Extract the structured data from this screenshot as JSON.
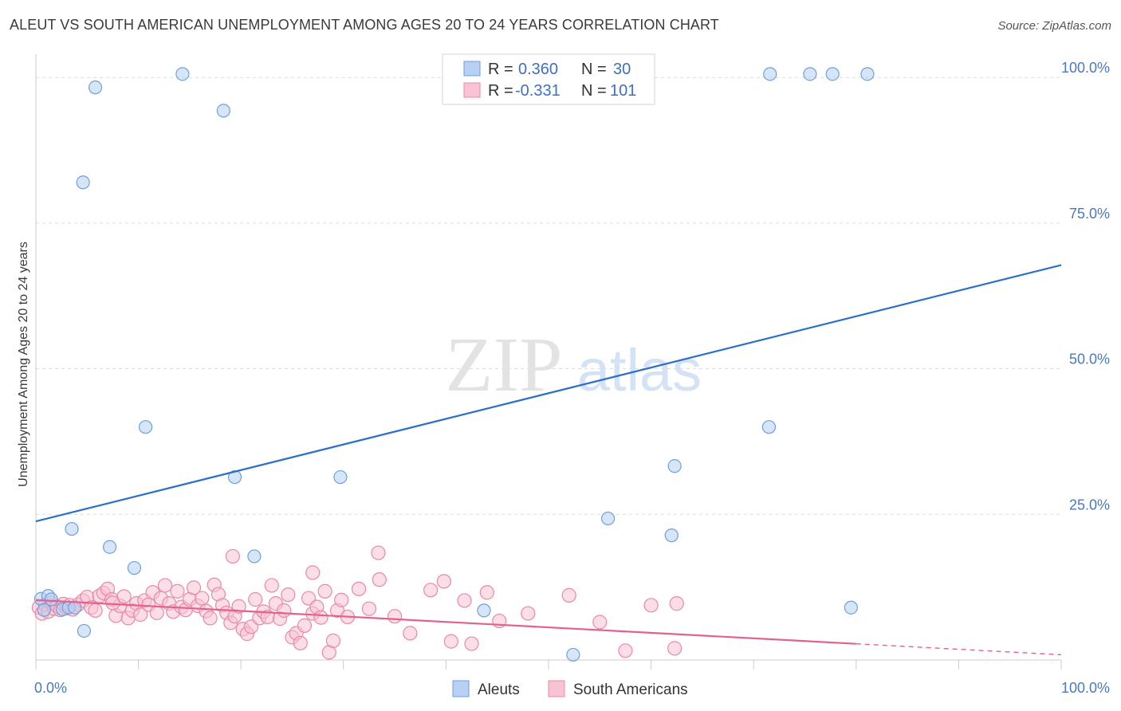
{
  "header": {
    "title": "ALEUT VS SOUTH AMERICAN UNEMPLOYMENT AMONG AGES 20 TO 24 YEARS CORRELATION CHART",
    "source": "Source: ZipAtlas.com"
  },
  "watermark": {
    "zip": "ZIP",
    "atlas": "atlas"
  },
  "legend_top": {
    "rows": [
      {
        "r_label": "R =",
        "r_value": "0.360",
        "n_label": "N =",
        "n_value": "30"
      },
      {
        "r_label": "R =",
        "r_value": "-0.331",
        "n_label": "N =",
        "n_value": "101"
      }
    ]
  },
  "legend_bottom": [
    "Aleuts",
    "South Americans"
  ],
  "colors": {
    "aleut_fill": "#b7d0f4",
    "aleut_stroke": "#6f9fdc",
    "aleut_line": "#2e6fcc",
    "sa_fill": "#f8c3d2",
    "sa_stroke": "#e889a6",
    "sa_line": "#e2628c",
    "grid": "#d9d9d9",
    "tick_text": "#4a78c2"
  },
  "chart_data": {
    "type": "scatter",
    "title": "ALEUT VS SOUTH AMERICAN UNEMPLOYMENT AMONG AGES 20 TO 24 YEARS CORRELATION CHART",
    "xlabel": "",
    "ylabel": "Unemployment Among Ages 20 to 24 years",
    "xlim": [
      0,
      100
    ],
    "ylim": [
      0,
      104
    ],
    "x_tick_labels": [
      "0.0%",
      "100.0%"
    ],
    "y_ticks": [
      25,
      50,
      75,
      100
    ],
    "y_tick_labels": [
      "25.0%",
      "50.0%",
      "75.0%",
      "100.0%"
    ],
    "grid": true,
    "series": [
      {
        "name": "Aleuts",
        "r": 0.36,
        "n": 30,
        "trend": {
          "x": [
            0,
            100
          ],
          "y": [
            23.8,
            67.8
          ],
          "dashed_from": null
        },
        "points": [
          [
            0.5,
            10.5
          ],
          [
            0.8,
            8.6
          ],
          [
            1.2,
            11.0
          ],
          [
            1.5,
            10.4
          ],
          [
            2.6,
            8.7
          ],
          [
            3.2,
            9.0
          ],
          [
            3.5,
            22.5
          ],
          [
            3.8,
            9.0
          ],
          [
            4.7,
            5.0
          ],
          [
            5.8,
            98.3
          ],
          [
            4.6,
            82.0
          ],
          [
            7.2,
            19.4
          ],
          [
            9.6,
            15.8
          ],
          [
            10.7,
            40.0
          ],
          [
            14.3,
            100.6
          ],
          [
            18.3,
            94.3
          ],
          [
            19.4,
            31.4
          ],
          [
            21.3,
            17.8
          ],
          [
            29.7,
            31.4
          ],
          [
            43.7,
            8.5
          ],
          [
            52.4,
            0.9
          ],
          [
            55.8,
            24.3
          ],
          [
            62.0,
            21.4
          ],
          [
            62.3,
            33.3
          ],
          [
            71.6,
            100.6
          ],
          [
            71.5,
            40.0
          ],
          [
            75.5,
            100.6
          ],
          [
            77.7,
            100.6
          ],
          [
            81.1,
            100.6
          ],
          [
            79.5,
            9.0
          ]
        ]
      },
      {
        "name": "South Americans",
        "r": -0.331,
        "n": 101,
        "trend": {
          "x": [
            0,
            100
          ],
          "y": [
            10.3,
            0.9
          ],
          "dashed_from": 80
        },
        "points": [
          [
            0.3,
            9.0
          ],
          [
            0.6,
            8.0
          ],
          [
            0.9,
            9.5
          ],
          [
            1.2,
            8.3
          ],
          [
            1.5,
            9.8
          ],
          [
            1.8,
            8.8
          ],
          [
            2.1,
            9.2
          ],
          [
            2.4,
            8.6
          ],
          [
            2.7,
            9.6
          ],
          [
            3.0,
            8.9
          ],
          [
            3.3,
            9.4
          ],
          [
            3.6,
            8.7
          ],
          [
            4.1,
            9.5
          ],
          [
            4.6,
            10.2
          ],
          [
            5.0,
            10.8
          ],
          [
            5.4,
            9.0
          ],
          [
            5.8,
            8.5
          ],
          [
            6.2,
            11.0
          ],
          [
            6.6,
            11.5
          ],
          [
            7.0,
            12.2
          ],
          [
            7.4,
            10.4
          ],
          [
            7.8,
            7.6
          ],
          [
            8.2,
            9.3
          ],
          [
            8.6,
            10.9
          ],
          [
            9.0,
            7.2
          ],
          [
            9.4,
            8.5
          ],
          [
            9.8,
            9.7
          ],
          [
            10.2,
            7.8
          ],
          [
            10.6,
            10.2
          ],
          [
            11.0,
            9.5
          ],
          [
            11.4,
            11.6
          ],
          [
            11.8,
            8.1
          ],
          [
            12.2,
            10.6
          ],
          [
            12.6,
            12.8
          ],
          [
            13.0,
            9.7
          ],
          [
            13.4,
            8.3
          ],
          [
            13.8,
            11.8
          ],
          [
            14.2,
            9.1
          ],
          [
            14.6,
            8.6
          ],
          [
            15.0,
            10.4
          ],
          [
            15.4,
            12.4
          ],
          [
            15.8,
            9.3
          ],
          [
            16.2,
            10.6
          ],
          [
            16.6,
            8.4
          ],
          [
            17.0,
            7.2
          ],
          [
            17.4,
            12.9
          ],
          [
            17.8,
            11.3
          ],
          [
            18.2,
            9.4
          ],
          [
            18.6,
            8.1
          ],
          [
            19.0,
            6.4
          ],
          [
            19.4,
            7.5
          ],
          [
            19.8,
            9.2
          ],
          [
            20.2,
            5.3
          ],
          [
            20.6,
            4.5
          ],
          [
            21.0,
            5.7
          ],
          [
            21.4,
            10.4
          ],
          [
            21.8,
            7.2
          ],
          [
            22.2,
            8.3
          ],
          [
            22.6,
            7.4
          ],
          [
            23.0,
            12.8
          ],
          [
            23.4,
            9.7
          ],
          [
            23.8,
            7.1
          ],
          [
            24.2,
            8.5
          ],
          [
            24.6,
            11.2
          ],
          [
            25.0,
            3.9
          ],
          [
            25.4,
            4.6
          ],
          [
            25.8,
            2.9
          ],
          [
            26.2,
            5.9
          ],
          [
            26.6,
            10.6
          ],
          [
            27.0,
            8.0
          ],
          [
            27.4,
            9.1
          ],
          [
            27.8,
            7.3
          ],
          [
            28.2,
            11.8
          ],
          [
            28.6,
            1.3
          ],
          [
            29.0,
            3.3
          ],
          [
            29.4,
            8.5
          ],
          [
            29.8,
            10.3
          ],
          [
            30.4,
            7.4
          ],
          [
            31.5,
            12.2
          ],
          [
            32.5,
            8.8
          ],
          [
            33.4,
            18.4
          ],
          [
            35.0,
            7.5
          ],
          [
            36.5,
            4.6
          ],
          [
            38.5,
            12.0
          ],
          [
            39.8,
            13.5
          ],
          [
            40.5,
            3.2
          ],
          [
            41.8,
            10.2
          ],
          [
            42.5,
            2.8
          ],
          [
            44.0,
            11.6
          ],
          [
            45.2,
            6.7
          ],
          [
            48.0,
            8.0
          ],
          [
            52.0,
            11.1
          ],
          [
            55.0,
            6.5
          ],
          [
            57.5,
            1.6
          ],
          [
            60.0,
            9.4
          ],
          [
            62.5,
            9.7
          ],
          [
            27.0,
            15.0
          ],
          [
            33.5,
            13.8
          ],
          [
            19.2,
            17.8
          ],
          [
            62.3,
            2.0
          ],
          [
            7.5,
            9.8
          ]
        ]
      }
    ]
  }
}
